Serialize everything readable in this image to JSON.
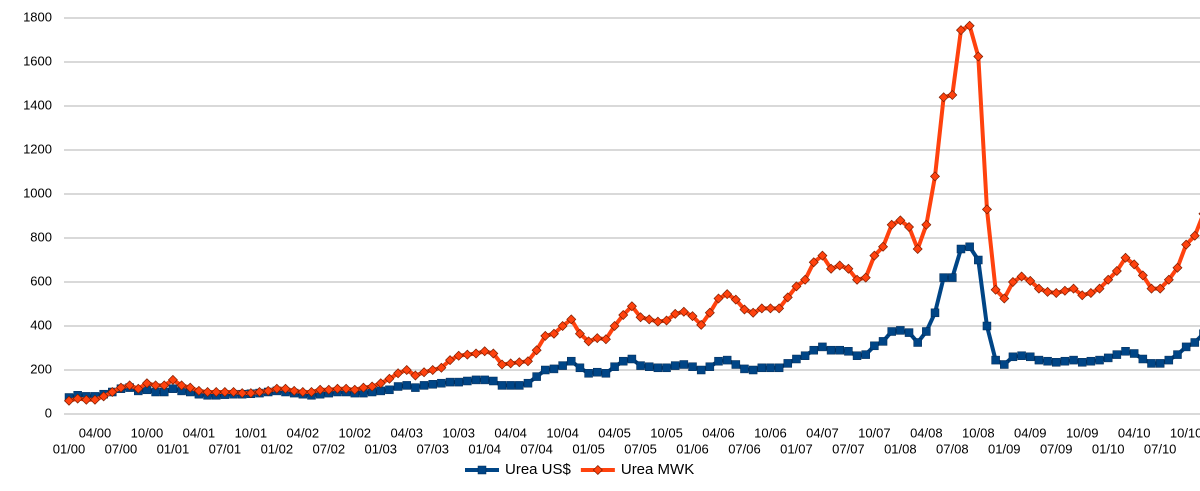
{
  "chart_data": {
    "type": "line",
    "categories": [
      "01/00",
      null,
      null,
      "04/00",
      null,
      null,
      "07/00",
      null,
      null,
      "10/00",
      null,
      null,
      "01/01",
      null,
      null,
      "04/01",
      null,
      null,
      "07/01",
      null,
      null,
      "10/01",
      null,
      null,
      "01/02",
      null,
      null,
      "04/02",
      null,
      null,
      "07/02",
      null,
      null,
      "10/02",
      null,
      null,
      "01/03",
      null,
      null,
      "04/03",
      null,
      null,
      "07/03",
      null,
      null,
      "10/03",
      null,
      null,
      "01/04",
      null,
      null,
      "04/04",
      null,
      null,
      "07/04",
      null,
      null,
      "10/04",
      null,
      null,
      "01/05",
      null,
      null,
      "04/05",
      null,
      null,
      "07/05",
      null,
      null,
      "10/05",
      null,
      null,
      "01/06",
      null,
      null,
      "04/06",
      null,
      null,
      "07/06",
      null,
      null,
      "10/06",
      null,
      null,
      "01/07",
      null,
      null,
      "04/07",
      null,
      null,
      "07/07",
      null,
      null,
      "10/07",
      null,
      null,
      "01/08",
      null,
      null,
      "04/08",
      null,
      null,
      "07/08",
      null,
      null,
      "10/08",
      null,
      null,
      "01/09",
      null,
      null,
      "04/09",
      null,
      null,
      "07/09",
      null,
      null,
      "10/09",
      null,
      null,
      "01/10",
      null,
      null,
      "04/10",
      null,
      null,
      "07/10",
      null,
      null,
      "10/10",
      null,
      null
    ],
    "series": [
      {
        "name": "Urea US$",
        "color": "#004586",
        "marker": "square",
        "values": [
          75,
          85,
          80,
          80,
          90,
          100,
          115,
          120,
          105,
          110,
          100,
          100,
          115,
          105,
          100,
          90,
          85,
          85,
          88,
          90,
          90,
          92,
          95,
          100,
          105,
          100,
          95,
          90,
          85,
          90,
          95,
          100,
          100,
          95,
          95,
          100,
          105,
          110,
          125,
          130,
          120,
          130,
          135,
          140,
          145,
          145,
          150,
          155,
          155,
          150,
          130,
          130,
          130,
          140,
          170,
          200,
          205,
          220,
          240,
          210,
          185,
          190,
          185,
          215,
          240,
          250,
          220,
          215,
          210,
          210,
          220,
          225,
          215,
          200,
          215,
          240,
          245,
          225,
          205,
          200,
          210,
          210,
          210,
          230,
          250,
          265,
          290,
          305,
          290,
          290,
          285,
          265,
          270,
          310,
          330,
          375,
          380,
          370,
          325,
          375,
          460,
          620,
          620,
          750,
          760,
          700,
          400,
          245,
          225,
          260,
          265,
          260,
          245,
          240,
          235,
          240,
          245,
          235,
          240,
          245,
          255,
          270,
          285,
          275,
          250,
          230,
          230,
          245,
          270,
          305,
          325,
          365
        ]
      },
      {
        "name": "Urea MWK",
        "color": "#ff420e",
        "marker": "diamond",
        "values": [
          60,
          70,
          65,
          65,
          80,
          100,
          120,
          130,
          115,
          140,
          130,
          130,
          155,
          130,
          120,
          105,
          100,
          100,
          100,
          100,
          95,
          95,
          100,
          105,
          115,
          115,
          105,
          100,
          100,
          110,
          110,
          115,
          115,
          110,
          120,
          125,
          140,
          160,
          185,
          200,
          175,
          190,
          200,
          210,
          245,
          265,
          270,
          275,
          285,
          275,
          225,
          230,
          235,
          240,
          290,
          355,
          365,
          400,
          430,
          365,
          330,
          345,
          340,
          400,
          450,
          490,
          440,
          430,
          420,
          425,
          455,
          465,
          445,
          405,
          460,
          525,
          545,
          520,
          475,
          460,
          480,
          480,
          480,
          530,
          580,
          610,
          690,
          720,
          660,
          675,
          660,
          610,
          620,
          720,
          760,
          860,
          880,
          850,
          750,
          860,
          1080,
          1440,
          1450,
          1745,
          1765,
          1625,
          930,
          565,
          525,
          600,
          625,
          605,
          570,
          555,
          550,
          560,
          570,
          540,
          550,
          570,
          610,
          650,
          710,
          680,
          630,
          570,
          570,
          610,
          665,
          770,
          810,
          910
        ]
      }
    ],
    "ylim": [
      0,
      1800
    ],
    "yticks": [
      0,
      200,
      400,
      600,
      800,
      1000,
      1200,
      1400,
      1600,
      1800
    ],
    "grid": true,
    "legend": "bottom"
  }
}
